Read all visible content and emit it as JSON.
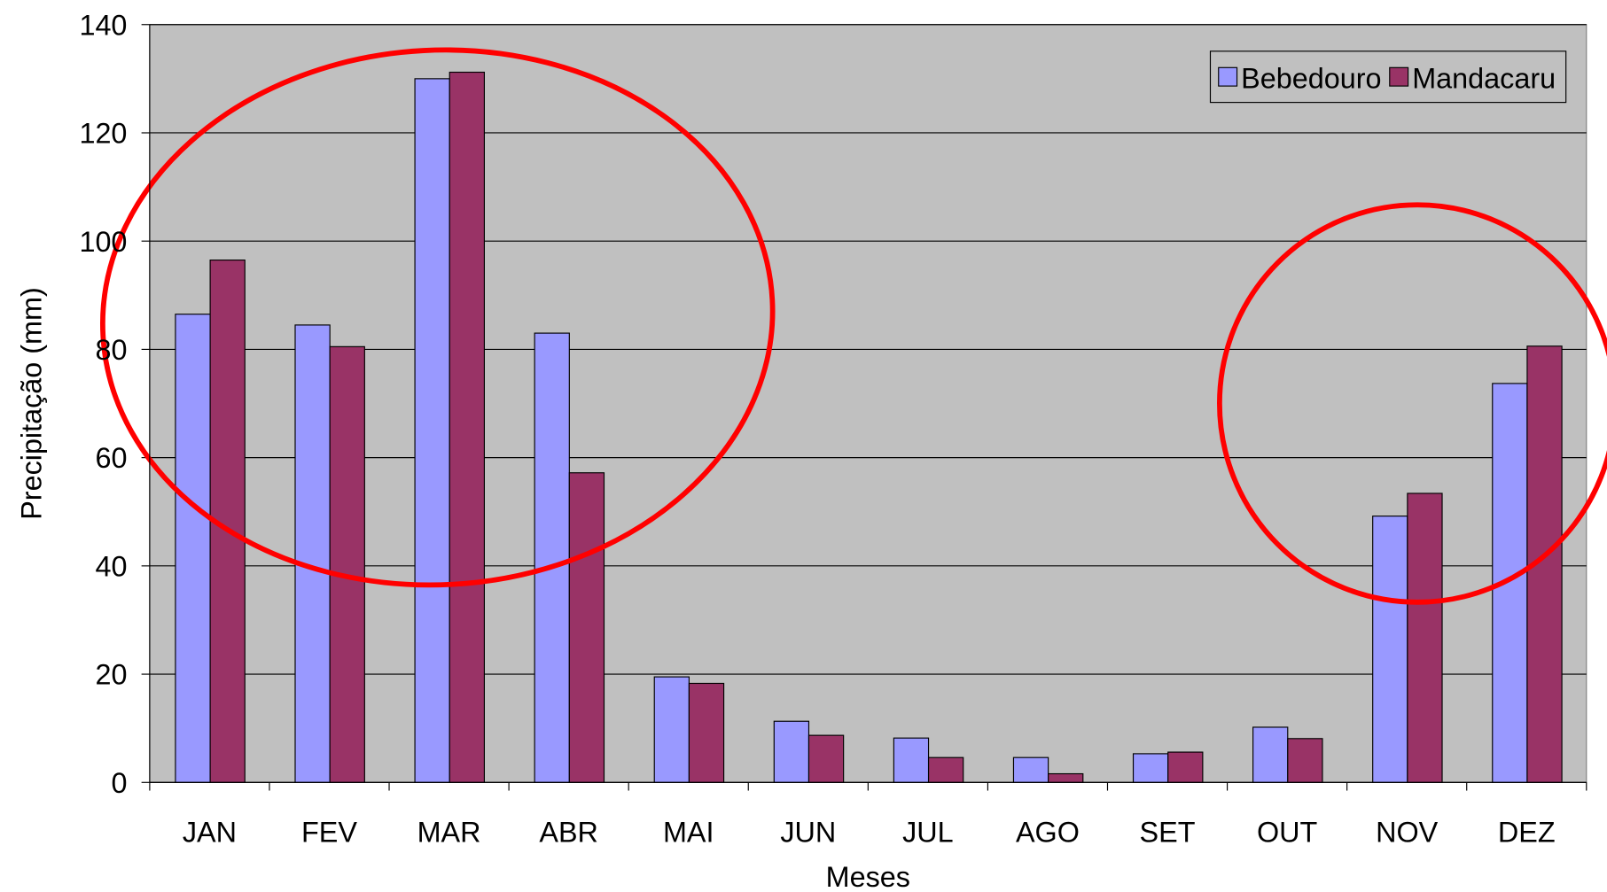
{
  "chart_data": {
    "type": "bar",
    "x_label": "Meses",
    "y_label": "Precipitação (mm)",
    "categories": [
      "JAN",
      "FEV",
      "MAR",
      "ABR",
      "MAI",
      "JUN",
      "JUL",
      "AGO",
      "SET",
      "OUT",
      "NOV",
      "DEZ"
    ],
    "series": [
      {
        "name": "Bebedouro",
        "color": "#9999ff",
        "values": [
          86.5,
          84.5,
          130,
          83,
          19.5,
          11.3,
          8.2,
          4.6,
          5.3,
          10.2,
          49.2,
          73.7
        ]
      },
      {
        "name": "Mandacaru",
        "color": "#993366",
        "values": [
          96.5,
          80.5,
          131.2,
          57.2,
          18.3,
          8.7,
          4.6,
          1.6,
          5.6,
          8.1,
          53.4,
          80.6
        ]
      }
    ],
    "ylim": [
      0,
      140
    ],
    "yticks": [
      0,
      20,
      40,
      60,
      80,
      100,
      120,
      140
    ],
    "grid": true,
    "legend": "top-right"
  }
}
